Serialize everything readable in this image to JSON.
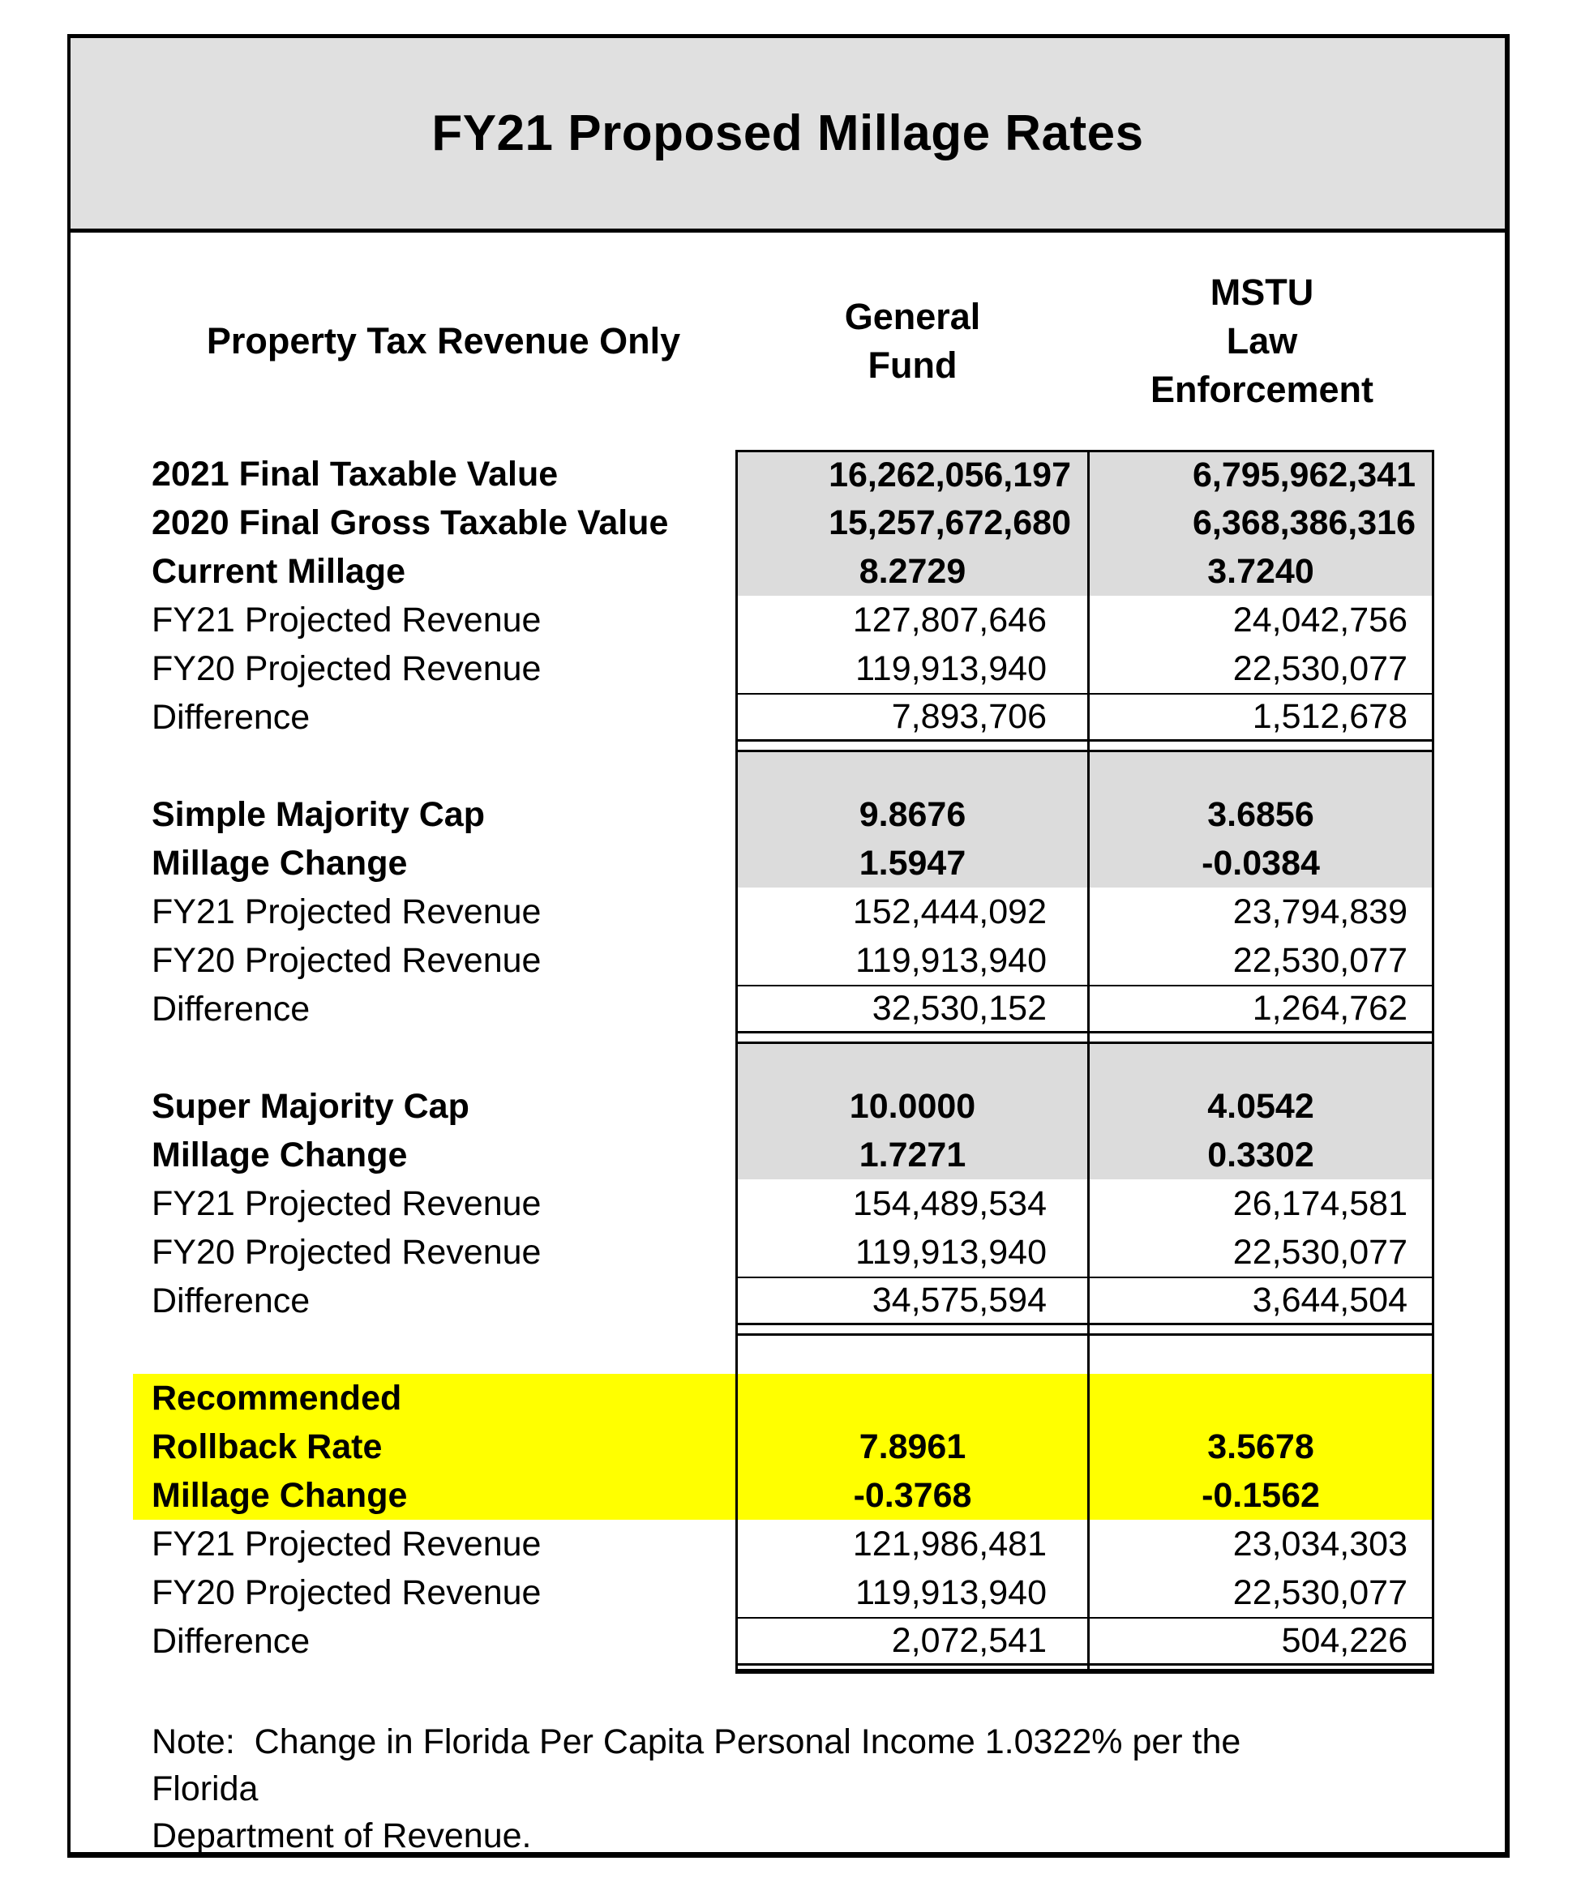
{
  "title": "FY21 Proposed Millage Rates",
  "columns": {
    "label": "Property Tax Revenue Only",
    "general_fund": "General\nFund",
    "mstu": "MSTU\nLaw\nEnforcement"
  },
  "sections": [
    {
      "name": "current-millage",
      "rows": [
        {
          "label": "2021 Final Taxable Value",
          "general_fund": "16,262,056,197",
          "mstu": "6,795,962,341"
        },
        {
          "label": "2020 Final Gross Taxable Value",
          "general_fund": "15,257,672,680",
          "mstu": "6,368,386,316"
        },
        {
          "label": "Current Millage",
          "general_fund": "8.2729",
          "mstu": "3.7240"
        },
        {
          "label": "FY21 Projected Revenue",
          "general_fund": "127,807,646",
          "mstu": "24,042,756"
        },
        {
          "label": "FY20 Projected Revenue",
          "general_fund": "119,913,940",
          "mstu": "22,530,077"
        },
        {
          "label": "Difference",
          "general_fund": "7,893,706",
          "mstu": "1,512,678"
        }
      ]
    },
    {
      "name": "simple-majority-cap",
      "rows": [
        {
          "label": "Simple Majority Cap",
          "general_fund": "9.8676",
          "mstu": "3.6856"
        },
        {
          "label": "Millage Change",
          "general_fund": "1.5947",
          "mstu": "-0.0384"
        },
        {
          "label": "FY21 Projected Revenue",
          "general_fund": "152,444,092",
          "mstu": "23,794,839"
        },
        {
          "label": "FY20 Projected Revenue",
          "general_fund": "119,913,940",
          "mstu": "22,530,077"
        },
        {
          "label": "Difference",
          "general_fund": "32,530,152",
          "mstu": "1,264,762"
        }
      ]
    },
    {
      "name": "super-majority-cap",
      "rows": [
        {
          "label": "Super Majority Cap",
          "general_fund": "10.0000",
          "mstu": "4.0542"
        },
        {
          "label": "Millage Change",
          "general_fund": "1.7271",
          "mstu": "0.3302"
        },
        {
          "label": "FY21 Projected Revenue",
          "general_fund": "154,489,534",
          "mstu": "26,174,581"
        },
        {
          "label": "FY20 Projected Revenue",
          "general_fund": "119,913,940",
          "mstu": "22,530,077"
        },
        {
          "label": "Difference",
          "general_fund": "34,575,594",
          "mstu": "3,644,504"
        }
      ]
    },
    {
      "name": "recommended-rollback",
      "rows": [
        {
          "label": "Recommended",
          "general_fund": "",
          "mstu": ""
        },
        {
          "label": "Rollback Rate",
          "general_fund": "7.8961",
          "mstu": "3.5678"
        },
        {
          "label": "Millage Change",
          "general_fund": "-0.3768",
          "mstu": "-0.1562"
        },
        {
          "label": "FY21 Projected Revenue",
          "general_fund": "121,986,481",
          "mstu": "23,034,303"
        },
        {
          "label": "FY20 Projected Revenue",
          "general_fund": "119,913,940",
          "mstu": "22,530,077"
        },
        {
          "label": "Difference",
          "general_fund": "2,072,541",
          "mstu": "504,226"
        }
      ]
    }
  ],
  "note": "Note:  Change in Florida Per Capita Personal Income 1.0322% per the Florida\nDepartment of Revenue.",
  "colors": {
    "highlight": "#ffff00",
    "shaded_cell": "#dcdcdc",
    "title_bg": "#e0e0e0"
  }
}
